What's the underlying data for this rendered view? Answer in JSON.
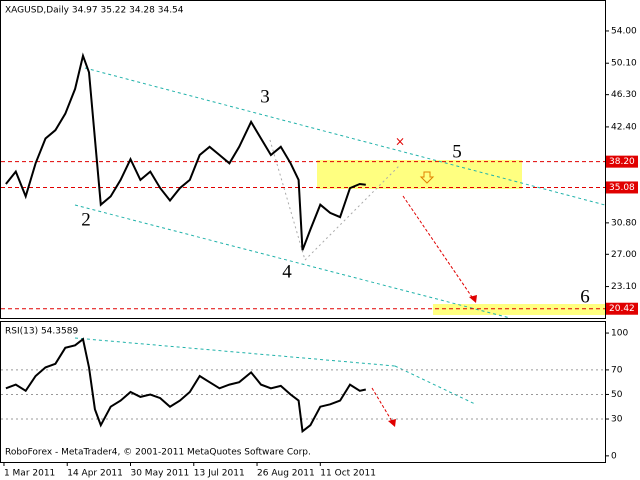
{
  "chart_data": [
    {
      "type": "line",
      "title": "XAGUSD,Daily  34.97 35.22 34.28 34.54",
      "annotations": [
        "2",
        "3",
        "4",
        "5",
        "6"
      ],
      "x": [
        1,
        6,
        11,
        16,
        21,
        26,
        31,
        36,
        40,
        43,
        46,
        49,
        54,
        59,
        64,
        69,
        74,
        79,
        84,
        89,
        94,
        99,
        104,
        109,
        114,
        119,
        125,
        130,
        135,
        140,
        145,
        149,
        151,
        155,
        160,
        165,
        170,
        175,
        180,
        183
      ],
      "series": [
        {
          "name": "XAGUSD",
          "color": "#000000",
          "values": [
            35.5,
            37,
            34,
            38,
            41,
            42,
            44,
            47,
            51,
            49,
            41,
            33,
            34,
            36,
            38.5,
            36,
            37,
            35,
            33.5,
            35,
            36,
            39,
            40,
            39,
            38,
            40,
            43,
            41,
            39,
            40,
            38,
            36,
            27.5,
            30,
            33,
            32,
            31.5,
            35,
            35.5,
            35.4
          ]
        }
      ],
      "xlim": [
        -1.5,
        304
      ],
      "xticks": [
        {
          "value": 0,
          "label": "1 Mar 2011"
        },
        {
          "value": 32,
          "label": "14 Apr 2011"
        },
        {
          "value": 64,
          "label": "30 May 2011"
        },
        {
          "value": 96,
          "label": "13 Jul 2011"
        },
        {
          "value": 128,
          "label": "26 Aug 2011"
        },
        {
          "value": 160,
          "label": "11 Oct 2011"
        }
      ],
      "ylim": [
        19.3,
        57.5
      ],
      "yticks": [
        {
          "value": 54,
          "label": "54.00"
        },
        {
          "value": 50.1,
          "label": "50.10"
        },
        {
          "value": 46.3,
          "label": "46.30"
        },
        {
          "value": 42.4,
          "label": "42.40"
        },
        {
          "value": 30.8,
          "label": "30.80"
        },
        {
          "value": 27,
          "label": "27.00"
        },
        {
          "value": 23.1,
          "label": "23.10"
        }
      ],
      "levels": [
        {
          "value": 38.2,
          "label": "38.20"
        },
        {
          "value": 35.08,
          "label": "35.08"
        },
        {
          "value": 20.42,
          "label": "20.42"
        }
      ],
      "level_color": "#e00000"
    },
    {
      "type": "line",
      "title": "RSI(13) 54.3589",
      "footer": "RoboForex - MetaTrader4, © 2001-2011 MetaQuotes Software Corp.",
      "x": [
        1,
        6,
        11,
        16,
        21,
        26,
        31,
        36,
        40,
        43,
        46,
        49,
        54,
        59,
        64,
        69,
        74,
        79,
        84,
        89,
        94,
        99,
        104,
        109,
        114,
        119,
        125,
        130,
        135,
        140,
        145,
        149,
        151,
        155,
        160,
        165,
        170,
        175,
        180,
        183
      ],
      "series": [
        {
          "name": "RSI(13)",
          "color": "#000000",
          "values": [
            55,
            58,
            53,
            65,
            72,
            75,
            88,
            90,
            95,
            72,
            38,
            25,
            40,
            45,
            52,
            48,
            50,
            47,
            40,
            45,
            52,
            65,
            60,
            55,
            58,
            60,
            68,
            58,
            55,
            57,
            50,
            45,
            20,
            25,
            40,
            42,
            45,
            58,
            53,
            54
          ]
        }
      ],
      "xlim": [
        -1.5,
        304
      ],
      "ylim": [
        -5,
        109
      ],
      "yticks": [
        100,
        70,
        50,
        30,
        0
      ]
    }
  ]
}
